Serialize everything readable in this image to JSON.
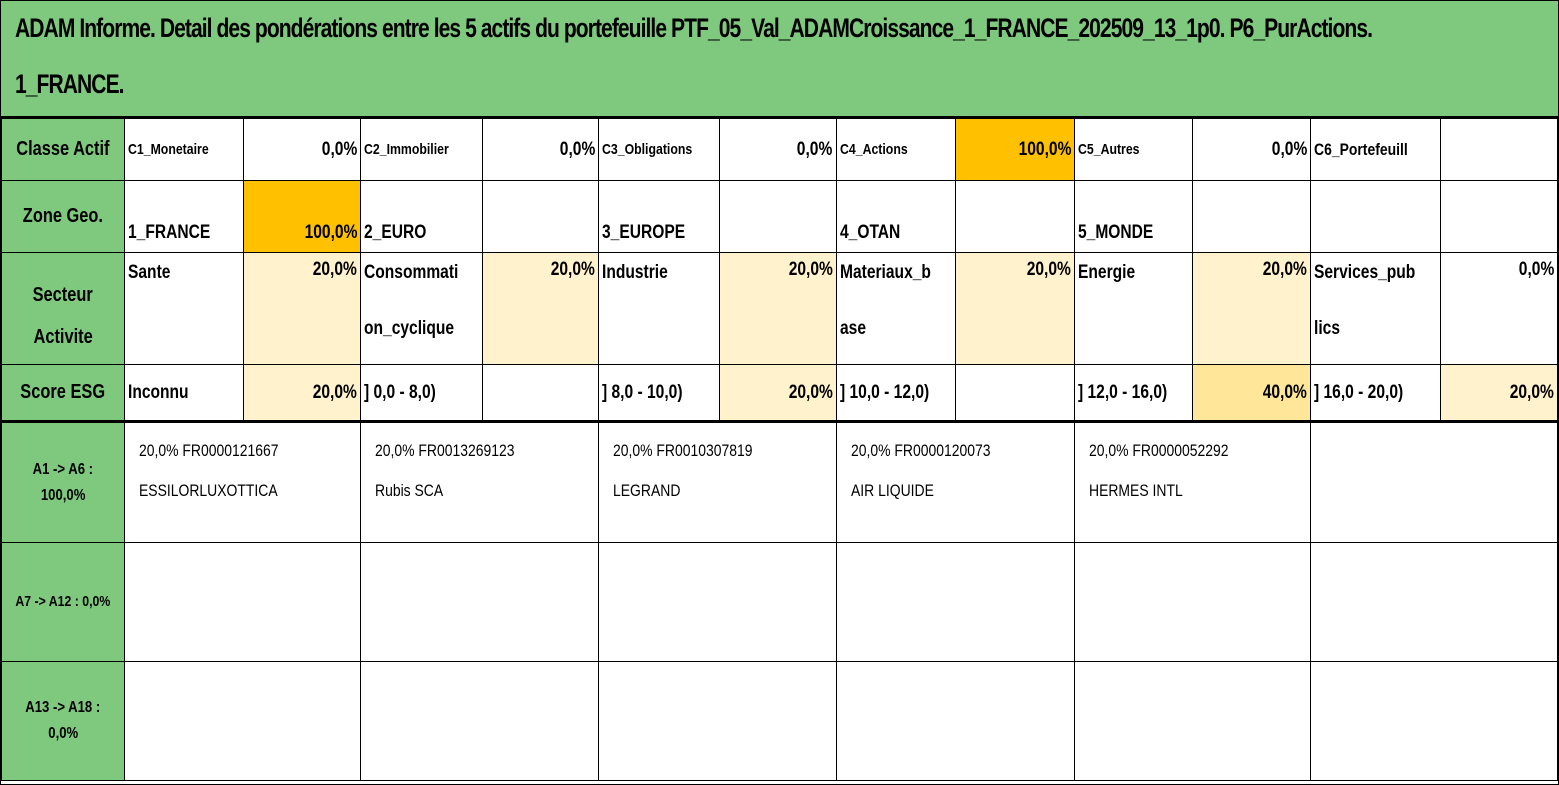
{
  "title": {
    "line1": "ADAM Informe. Detail des pondérations entre les 5 actifs du portefeuille PTF_05_Val_ADAMCroissance_1_FRANCE_202509_13_1p0. P6_PurActions.",
    "line2": "1_FRANCE."
  },
  "rows": {
    "classe": {
      "label": "Classe Actif",
      "cells": [
        {
          "name": "C1_Monetaire",
          "value": "0,0%"
        },
        {
          "name": "C2_Immobilier",
          "value": "0,0%"
        },
        {
          "name": "C3_Obligations",
          "value": "0,0%"
        },
        {
          "name": "C4_Actions",
          "value": "100,0%"
        },
        {
          "name": "C5_Autres",
          "value": "0,0%"
        },
        {
          "name": "C6_Portefeuill",
          "value": ""
        }
      ]
    },
    "zone": {
      "label": "Zone Geo.",
      "cells": [
        {
          "name": "1_FRANCE",
          "value": "100,0%"
        },
        {
          "name": "2_EURO",
          "value": ""
        },
        {
          "name": "3_EUROPE",
          "value": ""
        },
        {
          "name": "4_OTAN",
          "value": ""
        },
        {
          "name": "5_MONDE",
          "value": ""
        },
        {
          "name": "",
          "value": ""
        }
      ]
    },
    "secteur": {
      "label_line1": "Secteur",
      "label_line2": "Activite",
      "cells": [
        {
          "name_line1": "Sante",
          "name_line2": "",
          "value": "20,0%"
        },
        {
          "name_line1": "Consommati",
          "name_line2": "on_cyclique",
          "value": "20,0%"
        },
        {
          "name_line1": "Industrie",
          "name_line2": "",
          "value": "20,0%"
        },
        {
          "name_line1": "Materiaux_b",
          "name_line2": "ase",
          "value": "20,0%"
        },
        {
          "name_line1": "Energie",
          "name_line2": "",
          "value": "20,0%"
        },
        {
          "name_line1": "Services_pub",
          "name_line2": "lics",
          "value": "0,0%"
        }
      ]
    },
    "esg": {
      "label": "Score ESG",
      "cells": [
        {
          "name": "Inconnu",
          "value": "20,0%"
        },
        {
          "name": "] 0,0 - 8,0)",
          "value": ""
        },
        {
          "name": "] 8,0 - 10,0)",
          "value": "20,0%"
        },
        {
          "name": "] 10,0 - 12,0)",
          "value": ""
        },
        {
          "name": "] 12,0 - 16,0)",
          "value": "40,0%"
        },
        {
          "name": "] 16,0 - 20,0)",
          "value": "20,0%"
        }
      ]
    }
  },
  "assets": {
    "group1": {
      "label_line1": "A1 -> A6 :",
      "label_line2": "100,0%",
      "items": [
        {
          "line1": "20,0% FR0000121667",
          "line2": "ESSILORLUXOTTICA"
        },
        {
          "line1": "20,0% FR0013269123",
          "line2": "Rubis SCA"
        },
        {
          "line1": "20,0% FR0010307819",
          "line2": "LEGRAND"
        },
        {
          "line1": "20,0% FR0000120073",
          "line2": "AIR LIQUIDE"
        },
        {
          "line1": "20,0% FR0000052292",
          "line2": "HERMES INTL"
        },
        {
          "line1": "",
          "line2": ""
        }
      ]
    },
    "group2": {
      "label": "A7 -> A12 : 0,0%"
    },
    "group3": {
      "label_line1": "A13 -> A18 :",
      "label_line2": "0,0%"
    }
  },
  "colors": {
    "header_green": "#7fc97f",
    "highlight_orange": "#ffc000",
    "pale_yellow": "#fff2cc",
    "medium_yellow": "#ffe699"
  }
}
